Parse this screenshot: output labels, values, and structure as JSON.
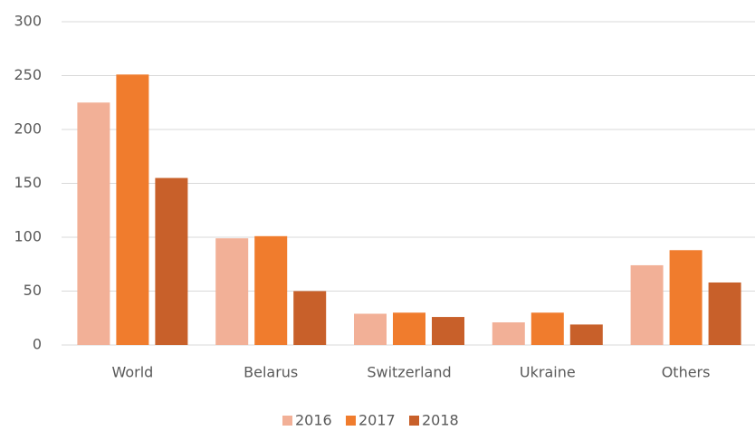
{
  "chart_data": {
    "type": "bar",
    "categories": [
      "World",
      "Belarus",
      "Switzerland",
      "Ukraine",
      "Others"
    ],
    "series": [
      {
        "name": "2016",
        "color": "#f2b097",
        "values": [
          225,
          99,
          29,
          21,
          74
        ]
      },
      {
        "name": "2017",
        "color": "#f07c2d",
        "values": [
          251,
          101,
          30,
          30,
          88
        ]
      },
      {
        "name": "2018",
        "color": "#c8602a",
        "values": [
          155,
          50,
          26,
          19,
          58
        ]
      }
    ],
    "ylim": [
      0,
      300
    ],
    "yticks": [
      0,
      50,
      100,
      150,
      200,
      250,
      300
    ],
    "grid": true,
    "legend": "bottom"
  }
}
